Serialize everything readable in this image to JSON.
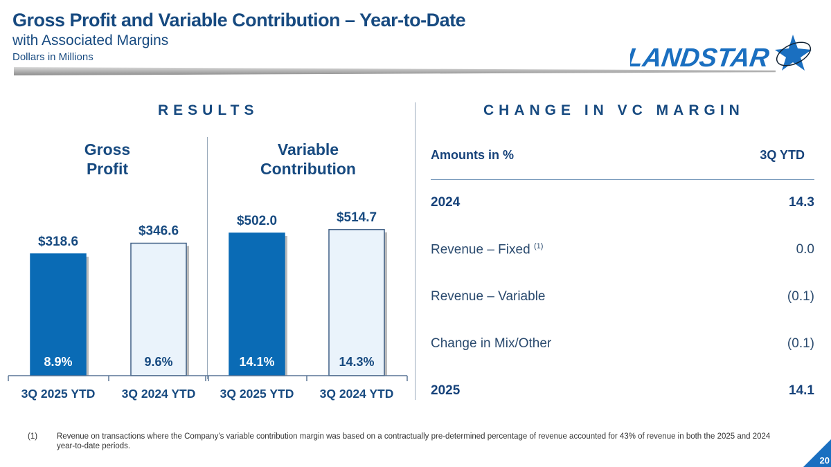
{
  "header": {
    "title": "Gross Profit and Variable Contribution – Year-to-Date",
    "subtitle": "with Associated Margins",
    "units": "Dollars in Millions",
    "logo_text": "LANDSTAR"
  },
  "results": {
    "heading": "RESULTS",
    "gp_label_1": "Gross",
    "gp_label_2": "Profit",
    "vc_label_1": "Variable",
    "vc_label_2": "Contribution"
  },
  "chart_data": {
    "type": "bar",
    "title": "Results",
    "groups": [
      {
        "name": "Gross Profit",
        "categories": [
          "3Q 2025 YTD",
          "3Q 2024 YTD"
        ],
        "values": [
          318.6,
          346.6
        ],
        "value_labels": [
          "$318.6",
          "$346.6"
        ],
        "margins": [
          "8.9%",
          "9.6%"
        ]
      },
      {
        "name": "Variable Contribution",
        "categories": [
          "3Q 2025 YTD",
          "3Q 2024 YTD"
        ],
        "values": [
          502.0,
          514.7
        ],
        "value_labels": [
          "$502.0",
          "$514.7"
        ],
        "margins": [
          "14.1%",
          "14.3%"
        ]
      }
    ],
    "colors": {
      "current": "#0a6bb5",
      "prior": "#eaf3fb",
      "text": "#174a80"
    }
  },
  "change": {
    "heading": "CHANGE IN VC MARGIN",
    "col_label": "Amounts in %",
    "col_period": "3Q YTD",
    "rows": [
      {
        "label": "2024",
        "value": "14.3",
        "bold": true
      },
      {
        "label": "Revenue – Fixed",
        "sup": "(1)",
        "value": "0.0"
      },
      {
        "label": "Revenue – Variable",
        "value": "(0.1)"
      },
      {
        "label": "Change in Mix/Other",
        "value": "(0.1)"
      },
      {
        "label": "2025",
        "value": "14.1",
        "bold": true
      }
    ]
  },
  "footnote": {
    "marker": "(1)",
    "text": "Revenue on transactions where the Company’s variable contribution margin was based on a contractually pre-determined percentage of revenue accounted for 43% of revenue in both the 2025 and 2024 year-to-date periods."
  },
  "page_number": "20"
}
